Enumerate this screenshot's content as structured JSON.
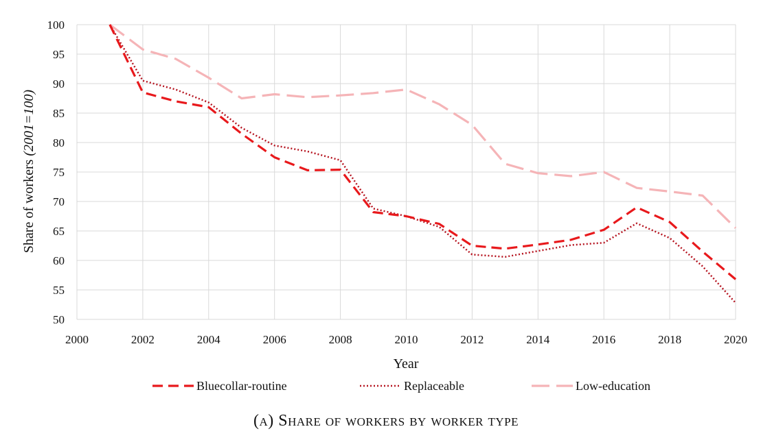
{
  "chart_data": {
    "type": "line",
    "xlabel": "Year",
    "ylabel_plain": "Share of workers ",
    "ylabel_italic": "(2001=100)",
    "xlim": [
      2000,
      2020
    ],
    "ylim": [
      50,
      100
    ],
    "x_ticks": [
      "2000",
      "2002",
      "2004",
      "2006",
      "2008",
      "2010",
      "2012",
      "2014",
      "2016",
      "2018",
      "2020"
    ],
    "y_ticks": [
      "50",
      "55",
      "60",
      "65",
      "70",
      "75",
      "80",
      "85",
      "90",
      "95",
      "100"
    ],
    "grid": true,
    "legend_position": "bottom",
    "x": [
      2001,
      2002,
      2003,
      2004,
      2005,
      2006,
      2007,
      2008,
      2009,
      2010,
      2011,
      2012,
      2013,
      2014,
      2015,
      2016,
      2017,
      2018,
      2019,
      2020
    ],
    "series": [
      {
        "name": "Bluecollar-routine",
        "color": "#e8191c",
        "style": "dashed",
        "values": [
          100,
          88.5,
          87,
          86,
          81.5,
          77.5,
          75.3,
          75.4,
          68.2,
          67.5,
          66.2,
          62.5,
          62,
          62.7,
          63.5,
          65.2,
          69,
          66.5,
          61.5,
          56.8
        ]
      },
      {
        "name": "Replaceable",
        "color": "#b5131f",
        "style": "dotted",
        "values": [
          100,
          90.5,
          89,
          86.8,
          82.5,
          79.5,
          78.5,
          77,
          68.8,
          67.5,
          65.7,
          61,
          60.6,
          61.6,
          62.6,
          63,
          66.3,
          63.8,
          59,
          52.8
        ]
      },
      {
        "name": "Low-education",
        "color": "#f5b4b7",
        "style": "long-dashed",
        "values": [
          100,
          95.8,
          94.2,
          91,
          87.5,
          88.2,
          87.7,
          88,
          88.4,
          89,
          86.5,
          83,
          76.4,
          74.8,
          74.3,
          75,
          72.3,
          71.7,
          71,
          65.5
        ]
      }
    ]
  },
  "caption": {
    "prefix": "(a) ",
    "text": "Share of workers by worker type"
  }
}
